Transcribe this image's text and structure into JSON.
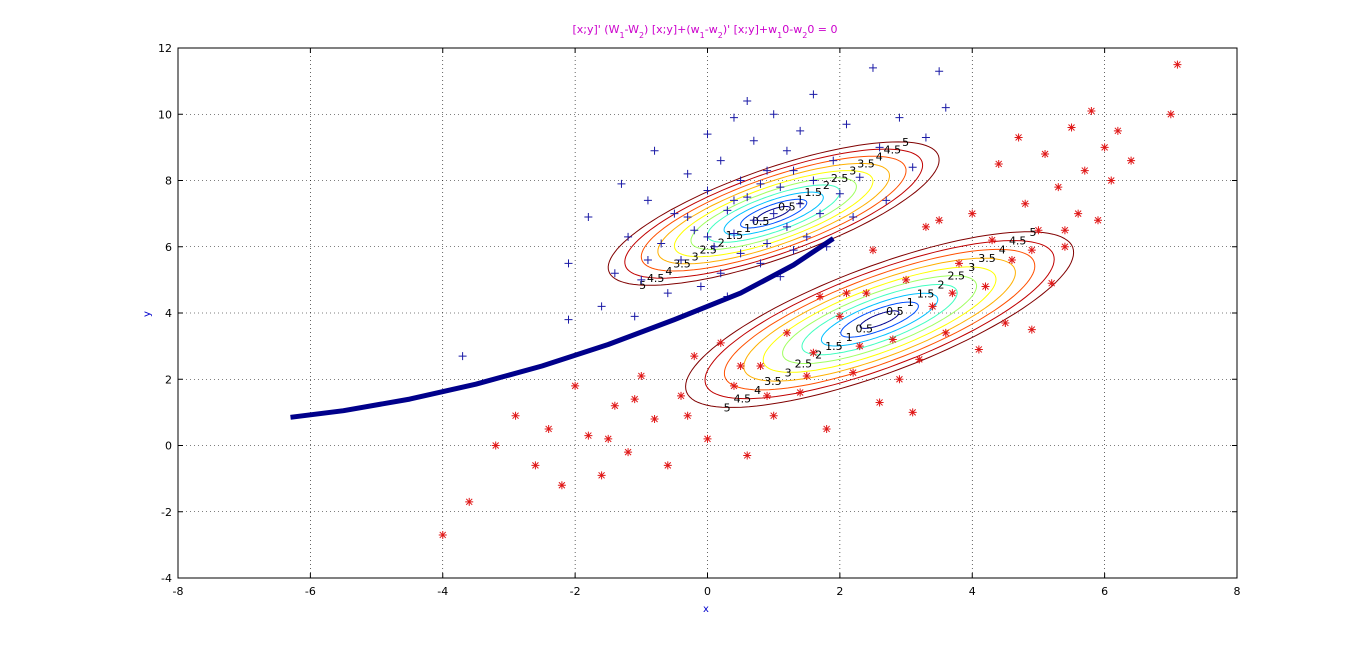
{
  "chart_data": {
    "type": "scatter",
    "title_parts": [
      {
        "t": "[x;y]' (W",
        "sub": false
      },
      {
        "t": "1",
        "sub": true
      },
      {
        "t": "-W",
        "sub": false
      },
      {
        "t": "2",
        "sub": true
      },
      {
        "t": ") [x;y]+(w",
        "sub": false
      },
      {
        "t": "1",
        "sub": true
      },
      {
        "t": "-w",
        "sub": false
      },
      {
        "t": "2",
        "sub": true
      },
      {
        "t": ")' [x;y]+w",
        "sub": false
      },
      {
        "t": "1",
        "sub": true
      },
      {
        "t": "0-w",
        "sub": false
      },
      {
        "t": "2",
        "sub": true
      },
      {
        "t": "0 = 0",
        "sub": false
      }
    ],
    "xlabel": "x",
    "ylabel": "y",
    "xlim": [
      -8,
      8
    ],
    "ylim": [
      -4,
      12
    ],
    "xticks": [
      "-8",
      "-6",
      "-4",
      "-2",
      "0",
      "2",
      "4",
      "6",
      "8"
    ],
    "yticks": [
      "-4",
      "-2",
      "0",
      "2",
      "4",
      "6",
      "8",
      "10",
      "12"
    ],
    "grid": true,
    "colors": {
      "class1": "#1a1aa6",
      "class2": "#e01818",
      "boundary": "#00008b",
      "contours": [
        "#00008f",
        "#0050ff",
        "#00c0ff",
        "#40ffc0",
        "#a0ff60",
        "#ffff00",
        "#ffb000",
        "#ff5000",
        "#c00000",
        "#800000"
      ],
      "title": "#cc00cc",
      "axis_label": "#0000cc"
    },
    "contour_levels": [
      0.5,
      1,
      1.5,
      2,
      2.5,
      3,
      3.5,
      4,
      4.5,
      5
    ],
    "contour_label_values": [
      "0.5",
      "1",
      "1.5",
      "2",
      "2.5",
      "3",
      "3.5",
      "4",
      "4.5",
      "5"
    ],
    "gaussians": [
      {
        "mean": [
          1.0,
          7.0
        ],
        "cov": [
          [
            4.0,
            2.6
          ],
          [
            2.6,
            3.0
          ]
        ]
      },
      {
        "mean": [
          2.6,
          3.8
        ],
        "cov": [
          [
            5.5,
            3.8
          ],
          [
            3.8,
            4.5
          ]
        ]
      }
    ],
    "class1_points": [
      [
        -3.7,
        2.7
      ],
      [
        -2.1,
        5.5
      ],
      [
        -2.1,
        3.8
      ],
      [
        -1.8,
        6.9
      ],
      [
        -1.6,
        4.2
      ],
      [
        -1.4,
        5.2
      ],
      [
        -1.2,
        6.3
      ],
      [
        -1.1,
        3.9
      ],
      [
        -1.0,
        5.0
      ],
      [
        -0.9,
        7.4
      ],
      [
        -0.8,
        8.9
      ],
      [
        -0.7,
        6.1
      ],
      [
        -0.6,
        4.6
      ],
      [
        -0.5,
        7.0
      ],
      [
        -0.4,
        5.6
      ],
      [
        -0.3,
        8.2
      ],
      [
        -0.2,
        6.5
      ],
      [
        -0.1,
        4.8
      ],
      [
        0.0,
        9.4
      ],
      [
        0.0,
        7.7
      ],
      [
        0.1,
        6.0
      ],
      [
        0.2,
        5.2
      ],
      [
        0.2,
        8.6
      ],
      [
        0.3,
        7.1
      ],
      [
        0.4,
        9.9
      ],
      [
        0.4,
        6.4
      ],
      [
        0.5,
        5.8
      ],
      [
        0.5,
        8.0
      ],
      [
        0.6,
        7.5
      ],
      [
        0.7,
        6.8
      ],
      [
        0.7,
        9.2
      ],
      [
        0.8,
        5.5
      ],
      [
        0.9,
        8.3
      ],
      [
        0.9,
        6.1
      ],
      [
        1.0,
        7.0
      ],
      [
        1.0,
        10.0
      ],
      [
        1.1,
        7.8
      ],
      [
        1.2,
        6.6
      ],
      [
        1.2,
        8.9
      ],
      [
        1.3,
        5.9
      ],
      [
        1.4,
        7.3
      ],
      [
        1.4,
        9.5
      ],
      [
        1.5,
        6.3
      ],
      [
        1.6,
        8.0
      ],
      [
        1.6,
        10.6
      ],
      [
        1.7,
        7.0
      ],
      [
        1.8,
        6.0
      ],
      [
        1.9,
        8.6
      ],
      [
        2.0,
        7.6
      ],
      [
        2.1,
        9.7
      ],
      [
        2.2,
        6.9
      ],
      [
        2.3,
        8.1
      ],
      [
        2.5,
        11.4
      ],
      [
        2.6,
        9.0
      ],
      [
        2.7,
        7.4
      ],
      [
        2.9,
        9.9
      ],
      [
        3.1,
        8.4
      ],
      [
        3.3,
        9.3
      ],
      [
        3.5,
        11.3
      ],
      [
        3.6,
        10.2
      ],
      [
        0.3,
        4.5
      ],
      [
        -0.3,
        6.9
      ],
      [
        0.6,
        10.4
      ],
      [
        1.1,
        5.1
      ],
      [
        -1.3,
        7.9
      ],
      [
        -0.9,
        5.6
      ],
      [
        0.0,
        6.3
      ],
      [
        0.4,
        7.4
      ],
      [
        1.3,
        8.3
      ],
      [
        0.8,
        7.9
      ]
    ],
    "class2_points": [
      [
        -4.0,
        -2.7
      ],
      [
        -3.6,
        -1.7
      ],
      [
        -3.2,
        0.0
      ],
      [
        -2.9,
        0.9
      ],
      [
        -2.6,
        -0.6
      ],
      [
        -2.4,
        0.5
      ],
      [
        -2.2,
        -1.2
      ],
      [
        -2.0,
        1.8
      ],
      [
        -1.8,
        0.3
      ],
      [
        -1.6,
        -0.9
      ],
      [
        -1.4,
        1.2
      ],
      [
        -1.2,
        -0.2
      ],
      [
        -1.0,
        2.1
      ],
      [
        -0.8,
        0.8
      ],
      [
        -0.6,
        -0.6
      ],
      [
        -0.4,
        1.5
      ],
      [
        -0.2,
        2.7
      ],
      [
        0.0,
        0.2
      ],
      [
        0.2,
        3.1
      ],
      [
        0.4,
        1.8
      ],
      [
        0.6,
        -0.3
      ],
      [
        0.8,
        2.4
      ],
      [
        1.0,
        0.9
      ],
      [
        1.2,
        3.4
      ],
      [
        1.4,
        1.6
      ],
      [
        1.6,
        2.8
      ],
      [
        1.8,
        0.5
      ],
      [
        2.0,
        3.9
      ],
      [
        2.2,
        2.2
      ],
      [
        2.4,
        4.6
      ],
      [
        2.6,
        1.3
      ],
      [
        2.8,
        3.2
      ],
      [
        3.0,
        5.0
      ],
      [
        3.1,
        1.0
      ],
      [
        3.2,
        2.6
      ],
      [
        3.4,
        4.2
      ],
      [
        3.5,
        6.8
      ],
      [
        3.6,
        3.4
      ],
      [
        3.8,
        5.5
      ],
      [
        4.0,
        7.0
      ],
      [
        4.1,
        2.9
      ],
      [
        4.2,
        4.8
      ],
      [
        4.3,
        6.2
      ],
      [
        4.4,
        8.5
      ],
      [
        4.5,
        3.7
      ],
      [
        4.6,
        5.6
      ],
      [
        4.7,
        9.3
      ],
      [
        4.8,
        7.3
      ],
      [
        4.9,
        3.5
      ],
      [
        5.0,
        6.5
      ],
      [
        5.1,
        8.8
      ],
      [
        5.2,
        4.9
      ],
      [
        5.3,
        7.8
      ],
      [
        5.4,
        6.0
      ],
      [
        5.5,
        9.6
      ],
      [
        5.6,
        7.0
      ],
      [
        5.7,
        8.3
      ],
      [
        5.8,
        10.1
      ],
      [
        5.9,
        6.8
      ],
      [
        6.0,
        9.0
      ],
      [
        6.1,
        8.0
      ],
      [
        6.2,
        9.5
      ],
      [
        6.4,
        8.6
      ],
      [
        7.1,
        11.5
      ],
      [
        7.0,
        10.0
      ],
      [
        2.1,
        4.6
      ],
      [
        2.5,
        5.9
      ],
      [
        1.7,
        4.5
      ],
      [
        3.3,
        6.6
      ],
      [
        -1.1,
        1.4
      ],
      [
        -0.3,
        0.9
      ],
      [
        0.9,
        1.5
      ],
      [
        1.5,
        2.1
      ],
      [
        2.3,
        3.0
      ],
      [
        3.7,
        4.6
      ],
      [
        4.9,
        5.9
      ],
      [
        0.5,
        2.4
      ],
      [
        -1.5,
        0.2
      ],
      [
        2.9,
        2.0
      ],
      [
        5.4,
        6.5
      ]
    ],
    "boundary": {
      "x": [
        -6.3,
        -5.5,
        -4.5,
        -3.5,
        -2.5,
        -1.5,
        -0.5,
        0.5,
        1.3,
        1.9
      ],
      "y": [
        0.85,
        1.05,
        1.4,
        1.85,
        2.4,
        3.05,
        3.8,
        4.6,
        5.45,
        6.25
      ]
    },
    "legend": "none"
  }
}
